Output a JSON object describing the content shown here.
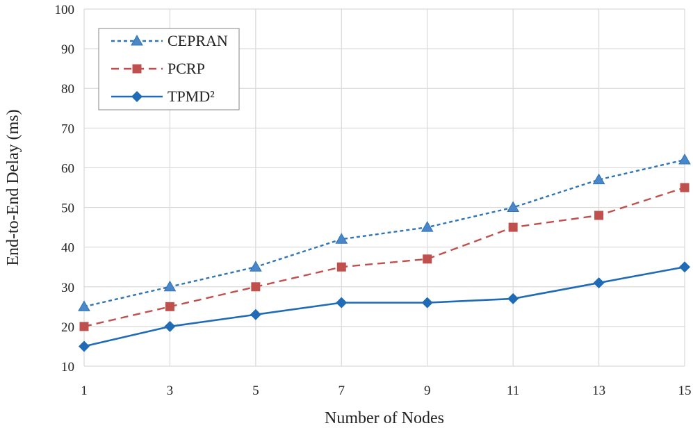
{
  "chart_data": {
    "type": "line",
    "title": "",
    "xlabel": "Number of Nodes",
    "ylabel": "End-to-End Delay (ms)",
    "x": [
      1,
      3,
      5,
      7,
      9,
      11,
      13,
      15
    ],
    "x_tick_labels": [
      "1",
      "3",
      "5",
      "7",
      "9",
      "11",
      "13",
      "15"
    ],
    "y_tick_labels": [
      "10",
      "20",
      "30",
      "40",
      "50",
      "60",
      "70",
      "80",
      "90",
      "100"
    ],
    "xlim": [
      1,
      15
    ],
    "ylim": [
      10,
      100
    ],
    "grid": true,
    "legend_position": "top-left",
    "series": [
      {
        "name": "CEPRAN",
        "values": [
          25,
          30,
          35,
          42,
          45,
          50,
          57,
          62
        ],
        "color": "#2E75B6",
        "line_style": "dotted",
        "marker": "triangle"
      },
      {
        "name": "PCRP",
        "values": [
          20,
          25,
          30,
          35,
          37,
          45,
          48,
          55
        ],
        "color": "#C0504D",
        "line_style": "dashed",
        "marker": "square"
      },
      {
        "name": "TPMD²",
        "values": [
          15,
          20,
          23,
          26,
          26,
          27,
          31,
          35
        ],
        "color": "#1F6BB5",
        "line_style": "solid",
        "marker": "diamond"
      }
    ]
  }
}
